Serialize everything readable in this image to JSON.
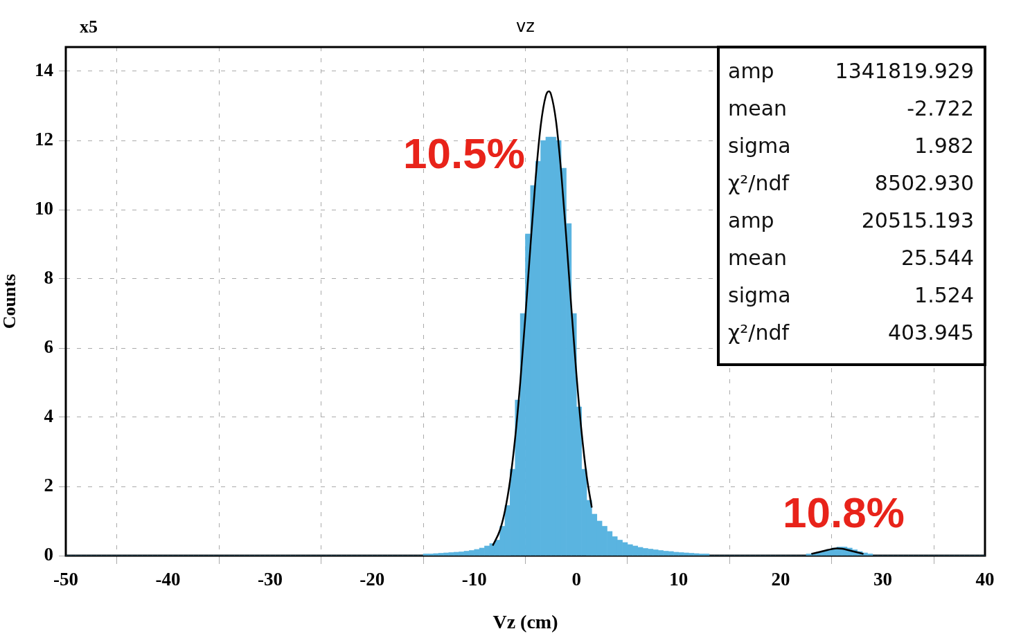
{
  "chart_data": {
    "type": "histogram",
    "title": "vz",
    "xlabel": "Vz (cm)",
    "ylabel": "Counts",
    "color": "#5ab4e0",
    "bins": [
      -50,
      -49.5,
      -49,
      -48.5,
      -48,
      -47.5,
      -47,
      -46.5,
      -46,
      -45.5,
      -45,
      -44.5,
      -44,
      -43.5,
      -43,
      -42.5,
      -42,
      -41.5,
      -41,
      -40.5,
      -40,
      -39.5,
      -39,
      -38.5,
      -38,
      -37.5,
      -37,
      -36.5,
      -36,
      -35.5,
      -35,
      -34.5,
      -34,
      -33.5,
      -33,
      -32.5,
      -32,
      -31.5,
      -31,
      -30.5,
      -30,
      -29.5,
      -29,
      -28.5,
      -28,
      -27.5,
      -27,
      -26.5,
      -26,
      -25.5,
      -25,
      -24.5,
      -24,
      -23.5,
      -23,
      -22.5,
      -22,
      -21.5,
      -21,
      -20.5,
      -20,
      -19.5,
      -19,
      -18.5,
      -18,
      -17.5,
      -17,
      -16.5,
      -16,
      -15.5,
      -15,
      -14.5,
      -14,
      -13.5,
      -13,
      -12.5,
      -12,
      -11.5,
      -11,
      -10.5,
      -10,
      -9.5,
      -9,
      -8.5,
      -8,
      -7.5,
      -7,
      -6.5,
      -6,
      -5.5,
      -5,
      -4.5,
      -4,
      -3.5,
      -3,
      -2.5,
      -2,
      -1.5,
      -1,
      -0.5,
      0,
      0.5,
      1,
      1.5,
      2,
      2.5,
      3,
      3.5,
      4,
      4.5,
      5,
      5.5,
      6,
      6.5,
      7,
      7.5,
      8,
      8.5,
      9,
      9.5,
      10,
      10.5,
      11,
      11.5,
      12,
      12.5,
      13,
      13.5,
      14,
      14.5,
      15,
      15.5,
      16,
      16.5,
      17,
      17.5,
      18,
      18.5,
      19,
      19.5,
      20,
      20.5,
      21,
      21.5,
      22,
      22.5,
      23,
      23.5,
      24,
      24.5,
      25,
      25.5,
      26,
      26.5,
      27,
      27.5,
      28,
      28.5,
      29,
      29.5,
      30,
      30.5,
      31,
      31.5,
      32,
      32.5,
      33,
      33.5,
      34,
      34.5,
      35,
      35.5,
      36,
      36.5,
      37,
      37.5,
      38,
      38.5,
      39,
      39.5,
      40
    ],
    "values": [
      0,
      0,
      0,
      0,
      0,
      0,
      0,
      0,
      0,
      0,
      0,
      0,
      0,
      0,
      0,
      0,
      0,
      0,
      0,
      0,
      0,
      0,
      0,
      0,
      0,
      0,
      0,
      0,
      0,
      0,
      0,
      0,
      0,
      0,
      0,
      0,
      0,
      0,
      0,
      0,
      0,
      0,
      0,
      0,
      0,
      0,
      0,
      0,
      0,
      0,
      0,
      0,
      0,
      0,
      0,
      0,
      0,
      0,
      0,
      0,
      0,
      0,
      0,
      0,
      0,
      0,
      0,
      0,
      0,
      0,
      0.05,
      0.05,
      0.06,
      0.07,
      0.08,
      0.09,
      0.1,
      0.11,
      0.13,
      0.15,
      0.18,
      0.22,
      0.28,
      0.35,
      0.45,
      0.85,
      1.45,
      2.5,
      4.5,
      7.0,
      9.3,
      10.7,
      11.4,
      12.0,
      12.1,
      12.1,
      12.0,
      11.2,
      9.6,
      7.0,
      4.3,
      2.5,
      1.6,
      1.2,
      1.0,
      0.85,
      0.7,
      0.55,
      0.45,
      0.38,
      0.32,
      0.28,
      0.24,
      0.21,
      0.19,
      0.17,
      0.15,
      0.13,
      0.12,
      0.1,
      0.09,
      0.08,
      0.07,
      0.06,
      0.05,
      0.05,
      0,
      0,
      0,
      0,
      0,
      0,
      0,
      0,
      0,
      0,
      0,
      0,
      0,
      0,
      0,
      0,
      0,
      0,
      0,
      0.05,
      0.07,
      0.1,
      0.14,
      0.18,
      0.22,
      0.25,
      0.25,
      0.22,
      0.17,
      0.12,
      0.08,
      0.05,
      0,
      0,
      0,
      0,
      0,
      0,
      0,
      0,
      0,
      0,
      0,
      0,
      0,
      0,
      0,
      0,
      0,
      0,
      0,
      0,
      0,
      0
    ],
    "series": [
      {
        "type": "line",
        "color": "#000000",
        "x": [
          -8.2,
          -7.5,
          -7,
          -6.5,
          -6,
          -5.5,
          -5,
          -4.5,
          -4,
          -3.5,
          -3,
          -2.7,
          -2.5,
          -2,
          -1.5,
          -1,
          -0.5,
          0,
          0.5,
          1,
          1.5
        ],
        "values": [
          0.29,
          0.73,
          1.3,
          2.17,
          3.41,
          5.02,
          6.92,
          8.97,
          10.9,
          12.43,
          13.29,
          13.42,
          13.34,
          12.56,
          11.1,
          9.2,
          7.16,
          5.23,
          3.58,
          2.3,
          1.39
        ]
      },
      {
        "type": "line",
        "color": "#000000",
        "x": [
          23,
          24,
          25,
          25.5,
          26,
          27,
          28.1
        ],
        "values": [
          0.05,
          0.12,
          0.19,
          0.21,
          0.2,
          0.13,
          0.05
        ]
      }
    ],
    "xlim": [
      -50,
      40
    ],
    "xticks": [
      -50,
      -40,
      -30,
      -20,
      -10,
      0,
      10,
      20,
      30,
      40
    ],
    "ylim": [
      0,
      14.7
    ],
    "yticks": [
      0,
      2,
      4,
      6,
      8,
      10,
      12,
      14
    ],
    "grid": true,
    "marker": "none",
    "legend": false,
    "annotations": [
      "x5",
      "amp 1341819.929",
      "mean -2.722",
      "sigma 1.982",
      "χ²/ndf 8502.930",
      "amp 20515.193",
      "mean 25.544",
      "sigma 1.524",
      "χ²/ndf 403.945",
      "10.5%",
      "10.8%"
    ]
  }
}
